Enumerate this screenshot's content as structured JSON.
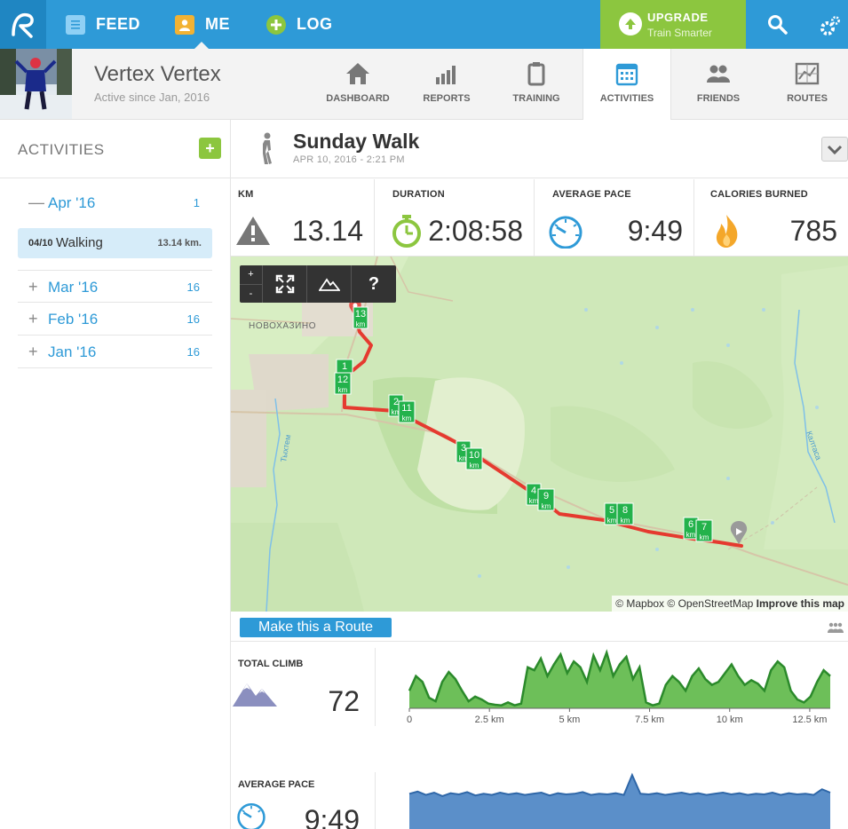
{
  "nav": {
    "feed_label": "FEED",
    "me_label": "ME",
    "log_label": "LOG",
    "upgrade_title": "UPGRADE",
    "upgrade_subtitle": "Train Smarter"
  },
  "profile": {
    "name": "Vertex Vertex",
    "since": "Active since Jan, 2016"
  },
  "tabs": [
    {
      "label": "DASHBOARD",
      "icon": "home-icon"
    },
    {
      "label": "REPORTS",
      "icon": "bar-chart-icon"
    },
    {
      "label": "TRAINING",
      "icon": "clipboard-icon"
    },
    {
      "label": "ACTIVITIES",
      "icon": "calendar-icon",
      "active": true
    },
    {
      "label": "FRIENDS",
      "icon": "friends-icon"
    },
    {
      "label": "ROUTES",
      "icon": "route-map-icon"
    }
  ],
  "sidebar": {
    "title": "ACTIVITIES",
    "add_label": "+",
    "months": [
      {
        "sign": "—",
        "label": "Apr '16",
        "count": "1",
        "expanded": true
      },
      {
        "sign": "+",
        "label": "Mar '16",
        "count": "16"
      },
      {
        "sign": "+",
        "label": "Feb '16",
        "count": "16"
      },
      {
        "sign": "+",
        "label": "Jan '16",
        "count": "16"
      }
    ],
    "selected_activity": {
      "date": "04/10",
      "name": "Walking",
      "distance": "13.14 km."
    }
  },
  "activity": {
    "title": "Sunday Walk",
    "date": "APR 10, 2016  -  2:21 PM"
  },
  "stats": [
    {
      "label": "KM",
      "value": "13.14",
      "icon": "terrain-icon"
    },
    {
      "label": "DURATION",
      "value": "2:08:58",
      "icon": "stopwatch-icon"
    },
    {
      "label": "AVERAGE PACE",
      "value": "9:49",
      "icon": "speedometer-icon"
    },
    {
      "label": "CALORIES BURNED",
      "value": "785",
      "icon": "flame-icon"
    }
  ],
  "map": {
    "zoom_in": "+",
    "zoom_out": "-",
    "help": "?",
    "place_label": "НОВОХАЗИНО",
    "river1": "Тыхтем",
    "river2": "Калтаса",
    "attribution_mapbox": "© Mapbox",
    "attribution_osm": "© OpenStreetMap",
    "attribution_improve": "Improve this map",
    "km_markers": [
      "1",
      "2",
      "3",
      "4",
      "5",
      "6",
      "7",
      "8",
      "9",
      "10",
      "11",
      "12",
      "13"
    ],
    "km_unit": "km"
  },
  "route_button": "Make this a Route",
  "climb": {
    "label": "TOTAL CLIMB",
    "value": "72",
    "icon": "mountains-icon"
  },
  "pace": {
    "label": "AVERAGE PACE",
    "value": "9:49",
    "icon": "speedometer-icon"
  },
  "chart_data": [
    {
      "type": "area",
      "title": "",
      "xlabel": "",
      "ylabel": "",
      "x_ticks": [
        "0",
        "2.5 km",
        "5 km",
        "7.5 km",
        "10 km",
        "12.5 km"
      ],
      "xlim": [
        0,
        13.14
      ],
      "series": [
        {
          "values": [
            0.3,
            0.55,
            0.45,
            0.18,
            0.12,
            0.45,
            0.62,
            0.5,
            0.3,
            0.12,
            0.2,
            0.15,
            0.08,
            0.06,
            0.05,
            0.1,
            0.05,
            0.08,
            0.7,
            0.65,
            0.85,
            0.55,
            0.75,
            0.92,
            0.6,
            0.8,
            0.7,
            0.45,
            0.9,
            0.65,
            0.95,
            0.55,
            0.75,
            0.88,
            0.5,
            0.7,
            0.1,
            0.05,
            0.08,
            0.4,
            0.55,
            0.45,
            0.3,
            0.55,
            0.68,
            0.5,
            0.4,
            0.45,
            0.6,
            0.75,
            0.55,
            0.4,
            0.48,
            0.42,
            0.3,
            0.65,
            0.8,
            0.7,
            0.3,
            0.15,
            0.1,
            0.2,
            0.45,
            0.65,
            0.55
          ],
          "color": "#2b8a2b"
        }
      ]
    },
    {
      "type": "area",
      "title": "",
      "xlabel": "",
      "ylabel": "",
      "xlim": [
        0,
        13.14
      ],
      "series": [
        {
          "values": [
            0.62,
            0.66,
            0.6,
            0.64,
            0.58,
            0.63,
            0.61,
            0.65,
            0.59,
            0.62,
            0.6,
            0.64,
            0.61,
            0.63,
            0.6,
            0.62,
            0.64,
            0.59,
            0.63,
            0.61,
            0.62,
            0.65,
            0.6,
            0.62,
            0.61,
            0.63,
            0.6,
            0.95,
            0.62,
            0.61,
            0.63,
            0.6,
            0.62,
            0.64,
            0.61,
            0.63,
            0.6,
            0.62,
            0.64,
            0.61,
            0.63,
            0.6,
            0.62,
            0.61,
            0.64,
            0.6,
            0.63,
            0.61,
            0.62,
            0.6,
            0.7,
            0.64
          ],
          "color": "#2f67a8"
        }
      ]
    }
  ]
}
